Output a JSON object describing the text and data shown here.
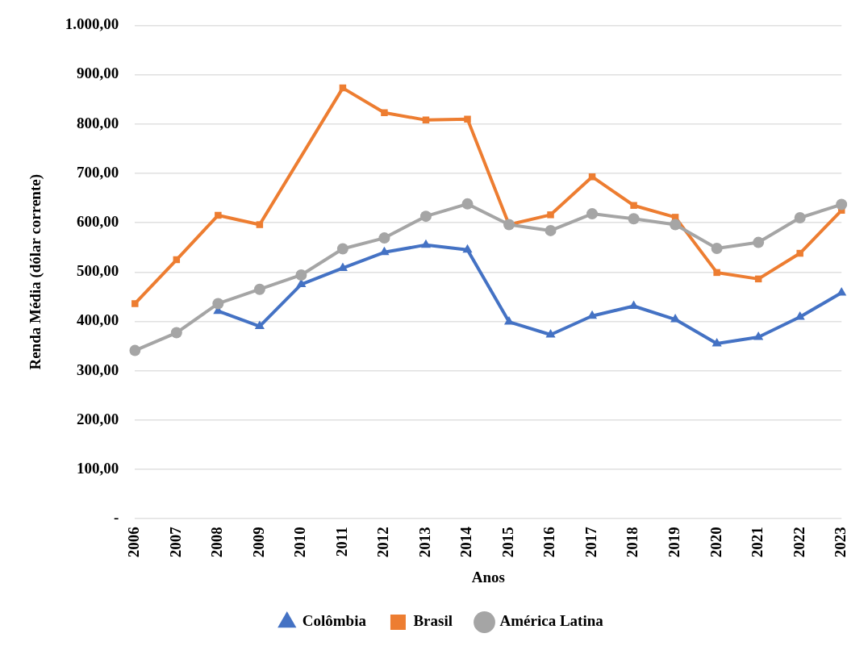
{
  "chart_data": {
    "type": "line",
    "xlabel": "Anos",
    "ylabel": "Renda Média (dólar corrente)",
    "categories": [
      "2006",
      "2007",
      "2008",
      "2009",
      "2010",
      "2011",
      "2012",
      "2013",
      "2014",
      "2015",
      "2016",
      "2017",
      "2018",
      "2019",
      "2020",
      "2021",
      "2022",
      "2023"
    ],
    "series": [
      {
        "name": "Colômbia",
        "color": "#4472c4",
        "marker": "triangle",
        "values": [
          null,
          null,
          421,
          390,
          475,
          508,
          540,
          555,
          545,
          399,
          373,
          411,
          431,
          404,
          355,
          368,
          409,
          458
        ]
      },
      {
        "name": "Brasil",
        "color": "#ed7d31",
        "marker": "square",
        "values": [
          436,
          525,
          615,
          596,
          null,
          873,
          823,
          808,
          810,
          596,
          616,
          693,
          635,
          611,
          499,
          486,
          538,
          625
        ]
      },
      {
        "name": "América Latina",
        "color": "#a5a5a5",
        "marker": "circle",
        "values": [
          341,
          377,
          436,
          465,
          494,
          547,
          569,
          613,
          638,
          596,
          584,
          618,
          608,
          596,
          548,
          560,
          610,
          637
        ]
      }
    ],
    "ylim": [
      0,
      1000
    ],
    "yticks": [
      {
        "value": 0,
        "label": "-"
      },
      {
        "value": 100,
        "label": "100,00"
      },
      {
        "value": 200,
        "label": "200,00"
      },
      {
        "value": 300,
        "label": "300,00"
      },
      {
        "value": 400,
        "label": "400,00"
      },
      {
        "value": 500,
        "label": "500,00"
      },
      {
        "value": 600,
        "label": "600,00"
      },
      {
        "value": 700,
        "label": "700,00"
      },
      {
        "value": 800,
        "label": "800,00"
      },
      {
        "value": 900,
        "label": "900,00"
      },
      {
        "value": 1000,
        "label": "1.000,00"
      }
    ],
    "grid": "y",
    "legend": "bottom",
    "line_style": "solid"
  }
}
